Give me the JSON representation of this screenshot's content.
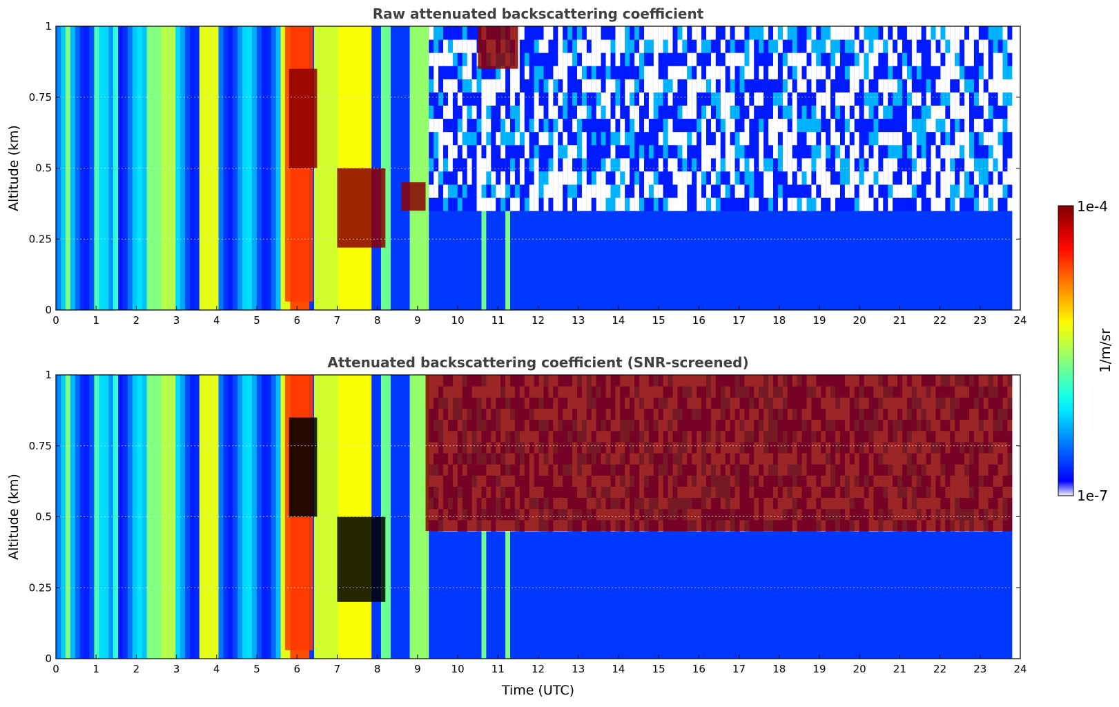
{
  "figure": {
    "colorbar": {
      "label": "1/m/sr",
      "max_label": "1e-4",
      "min_label": "1e-7",
      "scale": "log",
      "colormap": "jet"
    }
  },
  "chart_data": [
    {
      "type": "heatmap",
      "title": "Raw attenuated backscattering coefficient",
      "xlabel": "",
      "ylabel": "Altitude (km)",
      "xlim": [
        0,
        24
      ],
      "ylim": [
        0,
        1
      ],
      "x_ticks": [
        "0",
        "1",
        "2",
        "3",
        "4",
        "5",
        "6",
        "7",
        "8",
        "9",
        "10",
        "11",
        "12",
        "13",
        "14",
        "15",
        "16",
        "17",
        "18",
        "19",
        "20",
        "21",
        "22",
        "23",
        "24"
      ],
      "y_ticks": [
        "0",
        "0.25",
        "0.5",
        "0.75",
        "1"
      ],
      "y_tick_values": [
        0,
        0.25,
        0.5,
        0.75,
        1
      ],
      "grid": true,
      "features": [
        {
          "kind": "fog_layer",
          "x_range": [
            0,
            5.5
          ],
          "altitude_top_km": 1.0,
          "approx_value": "1e-6"
        },
        {
          "kind": "dense_layer",
          "x_range": [
            5.7,
            6.4
          ],
          "altitude_km": [
            0.03,
            1.0
          ],
          "approx_value": "5e-5"
        },
        {
          "kind": "cloud_base",
          "x_range": [
            5.8,
            6.5
          ],
          "altitude_km": [
            0.5,
            0.85
          ],
          "approx_value": "1e-4"
        },
        {
          "kind": "cloud_base",
          "x_range": [
            7.0,
            8.2
          ],
          "altitude_km": [
            0.22,
            0.5
          ],
          "approx_value": "1e-4"
        },
        {
          "kind": "cloud_base",
          "x_range": [
            8.6,
            9.2
          ],
          "altitude_km": [
            0.35,
            0.45
          ],
          "approx_value": "1e-4"
        },
        {
          "kind": "high_signal",
          "x_range": [
            10.5,
            11.5
          ],
          "altitude_km": [
            0.85,
            1.0
          ],
          "approx_value": "1e-4"
        },
        {
          "kind": "clear_air",
          "x_range": [
            9.2,
            23.8
          ],
          "altitude_top_km": 0.35,
          "approx_value": "3e-7"
        }
      ]
    },
    {
      "type": "heatmap",
      "title": "Attenuated backscattering coefficient (SNR-screened)",
      "xlabel": "Time (UTC)",
      "ylabel": "Altitude (km)",
      "xlim": [
        0,
        24
      ],
      "ylim": [
        0,
        1
      ],
      "x_ticks": [
        "0",
        "1",
        "2",
        "3",
        "4",
        "5",
        "6",
        "7",
        "8",
        "9",
        "10",
        "11",
        "12",
        "13",
        "14",
        "15",
        "16",
        "17",
        "18",
        "19",
        "20",
        "21",
        "22",
        "23",
        "24"
      ],
      "y_ticks": [
        "0",
        "0.25",
        "0.5",
        "0.75",
        "1"
      ],
      "y_tick_values": [
        0,
        0.25,
        0.5,
        0.75,
        1
      ],
      "grid": true,
      "features": [
        {
          "kind": "fog_layer",
          "x_range": [
            0,
            5.5
          ],
          "altitude_top_km": 1.0,
          "approx_value": "1e-6"
        },
        {
          "kind": "dense_layer",
          "x_range": [
            5.7,
            6.4
          ],
          "altitude_km": [
            0.03,
            1.0
          ],
          "approx_value": "5e-5"
        },
        {
          "kind": "cloud_base_saturated",
          "x_range": [
            5.8,
            6.5
          ],
          "altitude_km": [
            0.5,
            0.85
          ],
          "color": "#000000"
        },
        {
          "kind": "cloud_base_saturated",
          "x_range": [
            7.0,
            8.2
          ],
          "altitude_km": [
            0.2,
            0.5
          ],
          "color": "#000000"
        },
        {
          "kind": "screened_noise",
          "x_range": [
            9.2,
            23.8
          ],
          "altitude_km": [
            0.45,
            1.0
          ]
        },
        {
          "kind": "clear_air",
          "x_range": [
            9.2,
            23.8
          ],
          "altitude_top_km": 0.45,
          "approx_value": "3e-7"
        }
      ]
    }
  ]
}
